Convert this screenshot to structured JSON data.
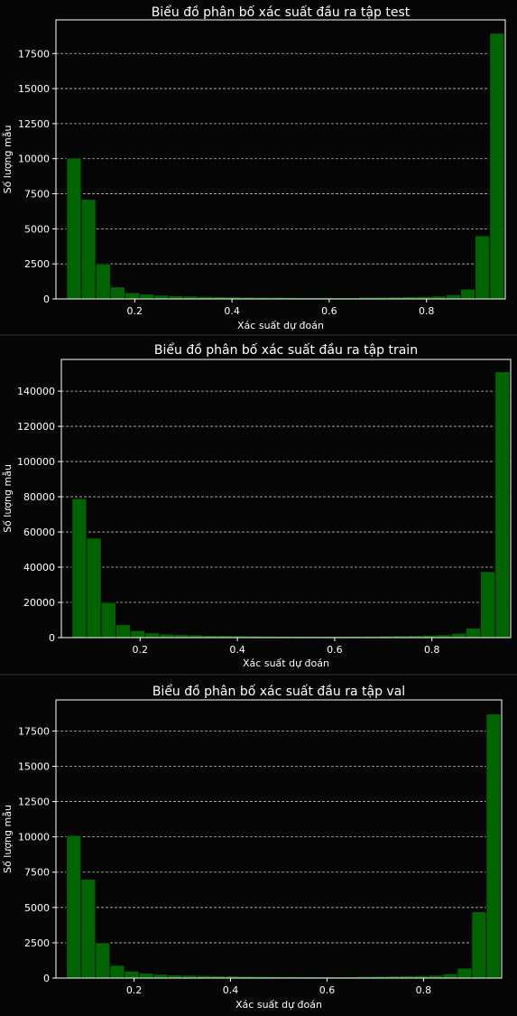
{
  "charts": [
    {
      "title": "Biểu đồ phân bố xác suất đầu ra tập test",
      "xlabel": "Xác suất dự đoán",
      "ylabel": "Số lượng mẫu",
      "yticks": [
        "0",
        "2500",
        "5000",
        "7500",
        "10000",
        "12500",
        "15000",
        "17500"
      ],
      "xticks": [
        "0.2",
        "0.4",
        "0.6",
        "0.8"
      ]
    },
    {
      "title": "Biểu đồ phân bố xác suất đầu ra tập train",
      "xlabel": "Xác suất dự đoán",
      "ylabel": "Số lượng mẫu",
      "yticks": [
        "0",
        "20000",
        "40000",
        "60000",
        "80000",
        "100000",
        "120000",
        "140000"
      ],
      "xticks": [
        "0.2",
        "0.4",
        "0.6",
        "0.8"
      ]
    },
    {
      "title": "Biểu đồ phân bố xác suất đầu ra tập val",
      "xlabel": "Xác suất dự đoán",
      "ylabel": "Số lượng mẫu",
      "yticks": [
        "0",
        "2500",
        "5000",
        "7500",
        "10000",
        "12500",
        "15000",
        "17500"
      ],
      "xticks": [
        "0.2",
        "0.4",
        "0.6",
        "0.8"
      ]
    }
  ],
  "chart_data": [
    {
      "type": "bar",
      "title": "Biểu đồ phân bố xác suất đầu ra tập test",
      "xlabel": "Xác suất dự đoán",
      "ylabel": "Số lượng mẫu",
      "xlim": [
        0.038,
        0.962
      ],
      "ylim": [
        0,
        19900
      ],
      "grid": "horizontal dashed",
      "bar_color": "#006400",
      "bin_edges": [
        0.06,
        0.09,
        0.12,
        0.15,
        0.18,
        0.21,
        0.24,
        0.27,
        0.3,
        0.33,
        0.36,
        0.39,
        0.42,
        0.45,
        0.48,
        0.51,
        0.54,
        0.57,
        0.6,
        0.63,
        0.66,
        0.69,
        0.72,
        0.75,
        0.78,
        0.81,
        0.84,
        0.87,
        0.9,
        0.93,
        0.96
      ],
      "values": [
        10050,
        7100,
        2500,
        850,
        450,
        350,
        270,
        230,
        200,
        180,
        160,
        150,
        130,
        120,
        120,
        110,
        100,
        100,
        90,
        90,
        120,
        130,
        140,
        160,
        170,
        200,
        300,
        700,
        4500,
        18950
      ]
    },
    {
      "type": "bar",
      "title": "Biểu đồ phân bố xác suất đầu ra tập train",
      "xlabel": "Xác suất dự đoán",
      "ylabel": "Số lượng mẫu",
      "xlim": [
        0.038,
        0.962
      ],
      "ylim": [
        0,
        158000
      ],
      "grid": "horizontal dashed",
      "bar_color": "#006400",
      "bin_edges": [
        0.06,
        0.09,
        0.12,
        0.15,
        0.18,
        0.21,
        0.24,
        0.27,
        0.3,
        0.33,
        0.36,
        0.39,
        0.42,
        0.45,
        0.48,
        0.51,
        0.54,
        0.57,
        0.6,
        0.63,
        0.66,
        0.69,
        0.72,
        0.75,
        0.78,
        0.81,
        0.84,
        0.87,
        0.9,
        0.93,
        0.96
      ],
      "values": [
        79000,
        56500,
        20000,
        7300,
        4000,
        2700,
        2000,
        1700,
        1500,
        1300,
        1200,
        1100,
        1000,
        900,
        850,
        800,
        800,
        750,
        750,
        800,
        900,
        1000,
        1100,
        1200,
        1400,
        1600,
        2400,
        5400,
        37500,
        151000
      ]
    },
    {
      "type": "bar",
      "title": "Biểu đồ phân bố xác suất đầu ra tập val",
      "xlabel": "Xác suất dự đoán",
      "ylabel": "Số lượng mẫu",
      "xlim": [
        0.038,
        0.962
      ],
      "ylim": [
        0,
        19700
      ],
      "grid": "horizontal dashed",
      "bar_color": "#006400",
      "bin_edges": [
        0.06,
        0.09,
        0.12,
        0.15,
        0.18,
        0.21,
        0.24,
        0.27,
        0.3,
        0.33,
        0.36,
        0.39,
        0.42,
        0.45,
        0.48,
        0.51,
        0.54,
        0.57,
        0.6,
        0.63,
        0.66,
        0.69,
        0.72,
        0.75,
        0.78,
        0.81,
        0.84,
        0.87,
        0.9,
        0.93,
        0.96
      ],
      "values": [
        10100,
        7000,
        2500,
        900,
        500,
        350,
        270,
        220,
        200,
        180,
        160,
        150,
        130,
        120,
        110,
        110,
        100,
        100,
        90,
        90,
        120,
        130,
        140,
        160,
        170,
        200,
        300,
        700,
        4700,
        18700
      ]
    }
  ]
}
